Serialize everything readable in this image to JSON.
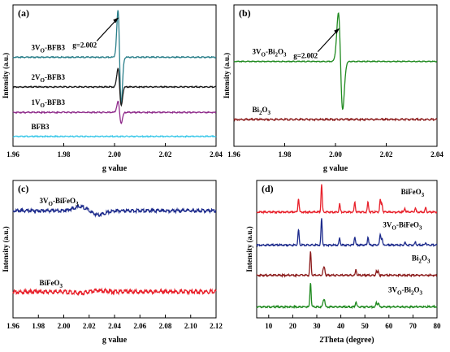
{
  "chart_data": [
    {
      "panel": "(a)",
      "type": "line",
      "xlabel": "g value",
      "ylabel": "Intensity (a.u.)",
      "xlim": [
        1.96,
        2.04
      ],
      "xticks": [
        "1.96",
        "1.98",
        "2.00",
        "2.02",
        "2.04"
      ],
      "annotation": "g=2.002",
      "series": [
        {
          "name": "3V_o-BFB3",
          "label_main": "3V",
          "label_sub": "O",
          "label_rest": "-BFB3",
          "color": "#2a7f8a",
          "baseline": 0.63,
          "center": 2.002,
          "amplitude": 0.35,
          "width": 0.0009,
          "noise": 0.004
        },
        {
          "name": "2V_o-BFB3",
          "label_main": "2V",
          "label_sub": "O",
          "label_rest": "-BFB3",
          "color": "#1a1a1a",
          "baseline": 0.42,
          "center": 2.002,
          "amplitude": 0.14,
          "width": 0.0009,
          "noise": 0.004
        },
        {
          "name": "1V_o-BFB3",
          "label_main": "1V",
          "label_sub": "O",
          "label_rest": "-BFB3",
          "color": "#8e2a8a",
          "baseline": 0.24,
          "center": 2.002,
          "amplitude": 0.08,
          "width": 0.0009,
          "noise": 0.004
        },
        {
          "name": "BFB3",
          "label_main": "BFB3",
          "label_sub": "",
          "label_rest": "",
          "color": "#35c6e8",
          "baseline": 0.07,
          "center": 2.002,
          "amplitude": 0.0,
          "width": 0.0009,
          "noise": 0.004
        }
      ]
    },
    {
      "panel": "(b)",
      "type": "line",
      "xlabel": "g value",
      "ylabel": "Intensity (a.u.)",
      "xlim": [
        1.96,
        2.04
      ],
      "xticks": [
        "1.96",
        "1.98",
        "2.00",
        "2.02",
        "2.04"
      ],
      "annotation": "g=2.002",
      "series": [
        {
          "name": "3V_o-Bi2O3",
          "label_main": "3V",
          "label_sub": "O",
          "label_rest": "-Bi",
          "label_sub2": "2",
          "label_rest2": "O",
          "label_sub3": "3",
          "color": "#1f8a1f",
          "baseline": 0.6,
          "center": 2.002,
          "amplitude": 0.36,
          "width": 0.0012,
          "noise": 0.003
        },
        {
          "name": "Bi2O3",
          "label_main": "Bi",
          "label_sub": "2",
          "label_rest": "O",
          "label_sub2": "3",
          "color": "#8b1a1a",
          "baseline": 0.19,
          "center": 2.002,
          "amplitude": 0.0,
          "width": 0.001,
          "noise": 0.006
        }
      ]
    },
    {
      "panel": "(c)",
      "type": "line",
      "xlabel": "g value",
      "ylabel": "Intensity (a.u.)",
      "xlim": [
        1.96,
        2.12
      ],
      "xticks": [
        "1.96",
        "1.98",
        "2.00",
        "2.02",
        "2.04",
        "2.06",
        "2.08",
        "2.10",
        "2.12"
      ],
      "series": [
        {
          "name": "3V_o-BiFeO3",
          "label_main": "3V",
          "label_sub": "O",
          "label_rest": "-BiFeO",
          "label_sub2": "3",
          "color": "#1c2a8c",
          "baseline": 0.78,
          "center": 2.02,
          "amplitude": 0.03,
          "width": 0.01,
          "noise": 0.012
        },
        {
          "name": "BiFeO3",
          "label_main": "BiFeO",
          "label_sub": "3",
          "label_rest": "",
          "color": "#e8202a",
          "baseline": 0.19,
          "center": 2.02,
          "amplitude": -0.01,
          "width": 0.01,
          "noise": 0.015
        }
      ]
    },
    {
      "panel": "(d)",
      "type": "line",
      "xlabel": "2Theta (degree)",
      "ylabel": "Intensity (a.u.)",
      "xlim": [
        5,
        80
      ],
      "xticks": [
        "10",
        "20",
        "30",
        "40",
        "50",
        "60",
        "70",
        "80"
      ],
      "series": [
        {
          "name": "BiFeO3",
          "label_main": "BiFeO",
          "label_sub": "3",
          "label_rest": "",
          "color": "#e8202a",
          "baseline": 0.77,
          "peaks": [
            [
              22.4,
              0.1
            ],
            [
              32.0,
              0.2
            ],
            [
              39.5,
              0.06
            ],
            [
              45.8,
              0.07
            ],
            [
              51.3,
              0.07
            ],
            [
              56.4,
              0.09
            ],
            [
              57.1,
              0.06
            ],
            [
              66.6,
              0.03
            ],
            [
              71.0,
              0.03
            ],
            [
              75.3,
              0.03
            ]
          ]
        },
        {
          "name": "3V_o-BiFeO3",
          "label_main": "3V",
          "label_sub": "O",
          "label_rest": "-BiFeO",
          "label_sub2": "3",
          "color": "#1c2a8c",
          "baseline": 0.53,
          "peaks": [
            [
              22.4,
              0.11
            ],
            [
              32.0,
              0.19
            ],
            [
              39.5,
              0.05
            ],
            [
              45.8,
              0.06
            ],
            [
              51.3,
              0.06
            ],
            [
              56.4,
              0.08
            ],
            [
              57.1,
              0.05
            ],
            [
              66.6,
              0.02
            ],
            [
              71.0,
              0.02
            ],
            [
              75.3,
              0.02
            ]
          ]
        },
        {
          "name": "Bi2O3",
          "label_main": "Bi",
          "label_sub": "2",
          "label_rest": "O",
          "label_sub2": "3",
          "color": "#8b1a1a",
          "baseline": 0.31,
          "peaks": [
            [
              27.4,
              0.17
            ],
            [
              32.7,
              0.04
            ],
            [
              33.2,
              0.05
            ],
            [
              46.3,
              0.04
            ],
            [
              54.8,
              0.03
            ],
            [
              55.6,
              0.03
            ]
          ]
        },
        {
          "name": "3V_o-Bi2O3",
          "label_main": "3V",
          "label_sub": "O",
          "label_rest": "-Bi",
          "label_sub2": "2",
          "label_rest2": "O",
          "label_sub3": "3",
          "color": "#1f8a1f",
          "baseline": 0.08,
          "peaks": [
            [
              27.4,
              0.18
            ],
            [
              32.7,
              0.04
            ],
            [
              33.2,
              0.05
            ],
            [
              46.3,
              0.04
            ],
            [
              54.8,
              0.03
            ],
            [
              55.6,
              0.03
            ]
          ]
        }
      ]
    }
  ]
}
